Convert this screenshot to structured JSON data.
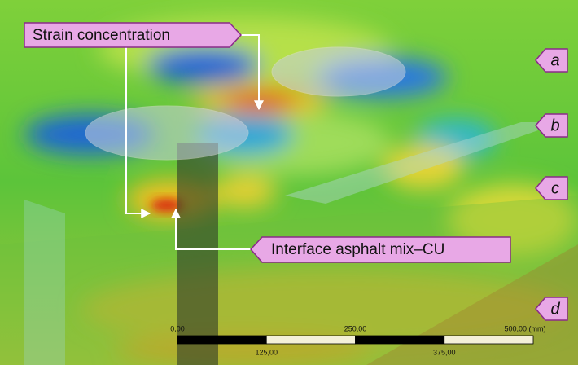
{
  "annotations": {
    "strain": "Strain concentration",
    "interface": "Interface asphalt mix–CU"
  },
  "layer_tags": [
    "a",
    "b",
    "c",
    "d"
  ],
  "scale_bar": {
    "top_labels": [
      "0,00",
      "250,00",
      "500,00 (mm)"
    ],
    "bottom_labels": [
      "125,00",
      "375,00"
    ]
  }
}
